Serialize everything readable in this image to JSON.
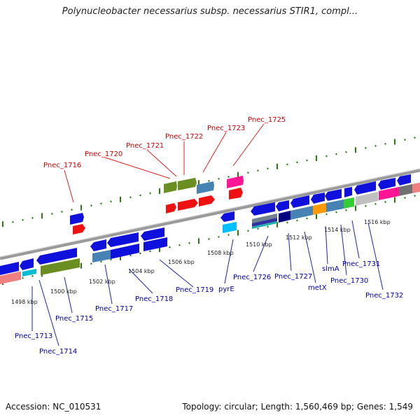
{
  "title": "Polynucleobacter necessarius subsp. necessarius STIR1, compl...",
  "footer": {
    "accession": "Accession: NC_010531",
    "genome_info": "Topology: circular; Length: 1,560,469 bp; Genes: 1,549"
  },
  "colors": {
    "backbone": "#888888",
    "tick": "#2a7a12",
    "forward_label": "#cc0000",
    "reverse_label": "#0000aa"
  },
  "scale_labels": [
    "1498 kbp",
    "1500 kbp",
    "1502 kbp",
    "1504 kbp",
    "1506 kbp",
    "1508 kbp",
    "1510 kbp",
    "1512 kbp",
    "1514 kbp",
    "1516 kbp"
  ],
  "forward_genes": [
    "Pnec_1716",
    "Pnec_1720",
    "Pnec_1721",
    "Pnec_1722",
    "Pnec_1723",
    "Pnec_1725"
  ],
  "reverse_genes": [
    "Pnec_1713",
    "Pnec_1714",
    "Pnec_1715",
    "Pnec_1717",
    "Pnec_1718",
    "Pnec_1719",
    "pyrE",
    "Pnec_1726",
    "Pnec_1727",
    "metX",
    "slmA",
    "Pnec_1730",
    "Pnec_1731",
    "Pnec_1732"
  ]
}
